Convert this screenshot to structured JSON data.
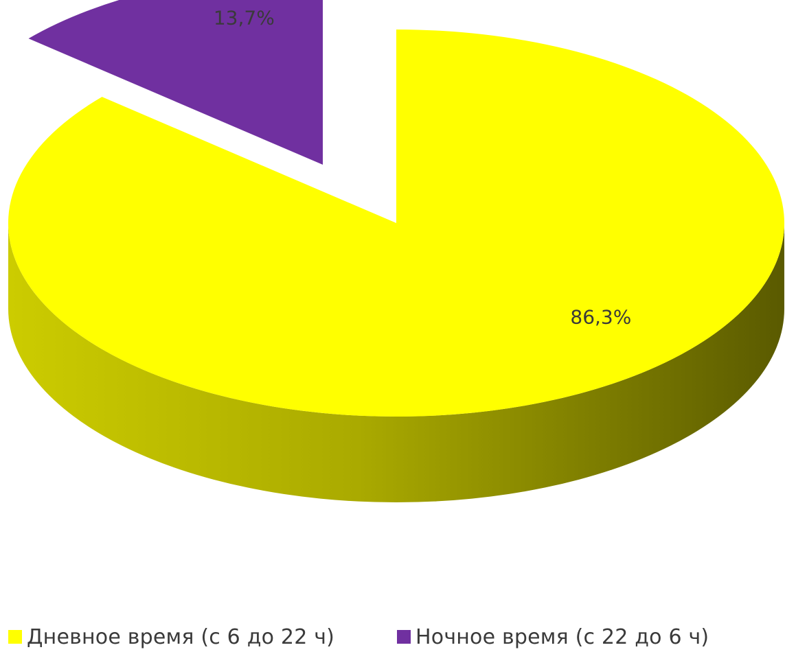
{
  "chart_data": {
    "type": "pie",
    "title": "",
    "style": "3d-exploded",
    "series": [
      {
        "name": "Дневное время (с 6 до 22 ч)",
        "value": 86.3,
        "label": "86,3%",
        "color": "#ffff00"
      },
      {
        "name": "Ночное время (с 22 до 6 ч)",
        "value": 13.7,
        "label": "13,7%",
        "color": "#7030a0"
      }
    ],
    "legend_position": "bottom"
  }
}
